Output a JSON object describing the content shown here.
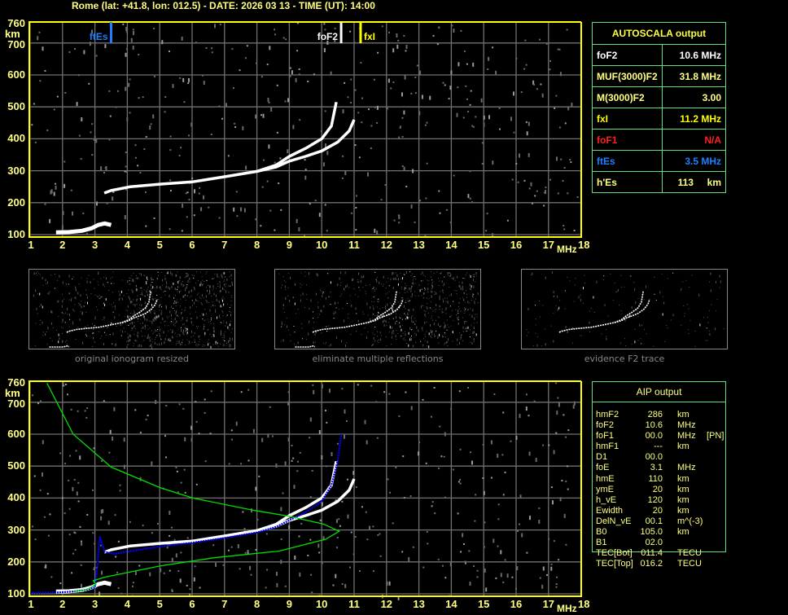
{
  "header": {
    "title": "Rome (lat: +41.8, lon: 012.5) - DATE: 2026 03 13 - TIME (UT): 14:00"
  },
  "autoscala": {
    "title": "AUTOSCALA output",
    "rows": [
      {
        "label": "foF2",
        "value": "10.6 MHz",
        "color": "#ffffff"
      },
      {
        "label": "MUF(3000)F2",
        "value": "31.8 MHz",
        "color": "#ffff80"
      },
      {
        "label": "M(3000)F2",
        "value": "3.00",
        "color": "#ffff80"
      },
      {
        "label": "fxI",
        "value": "11.2 MHz",
        "color": "#ffff00"
      },
      {
        "label": "foF1",
        "value": "N/A",
        "color": "#ff2020"
      },
      {
        "label": "ftEs",
        "value": "3.5 MHz",
        "color": "#1e7fff"
      },
      {
        "label": "h'Es",
        "value": "113     km",
        "color": "#ffff80"
      }
    ]
  },
  "aip": {
    "title": "AIP output",
    "rows": [
      [
        "hmF2",
        "286",
        "km",
        ""
      ],
      [
        "foF2",
        "10.6",
        "MHz",
        ""
      ],
      [
        "foF1",
        "00.0",
        "MHz",
        "[PN]"
      ],
      [
        "hmF1",
        "---",
        "km",
        ""
      ],
      [
        "D1",
        "00.0",
        "",
        ""
      ],
      [
        "foE",
        "3.1",
        "MHz",
        ""
      ],
      [
        "hmE",
        "110",
        "km",
        ""
      ],
      [
        "ymE",
        "20",
        "km",
        ""
      ],
      [
        "h_vE",
        "120",
        "km",
        ""
      ],
      [
        "Ewidth",
        "20",
        "km",
        ""
      ],
      [
        "DelN_vE",
        "00.1",
        "m^(-3)",
        ""
      ],
      [
        "B0",
        "105.0",
        "km",
        ""
      ],
      [
        "B1",
        "02.0",
        "",
        ""
      ],
      [
        "TEC[Bot]",
        "011.4",
        "TECU",
        ""
      ],
      [
        "TEC[Top]",
        "016.2",
        "TECU",
        ""
      ]
    ]
  },
  "thumbnails": [
    {
      "caption": "original ionogram resized"
    },
    {
      "caption": "eliminate multiple reflections"
    },
    {
      "caption": "evidence F2 trace"
    }
  ],
  "colors": {
    "axis": "#ffff00",
    "grid": "#707070",
    "trace": "#ffffff",
    "aip_fit": "#0000ff",
    "profile": "#00e000",
    "table_border": "#60e080"
  },
  "chart_data": [
    {
      "type": "scatter",
      "xlabel": "MHz",
      "ylabel": "km",
      "xlim": [
        1,
        18
      ],
      "ylim": [
        100,
        760
      ],
      "grid": true,
      "x_ticks": [
        "1",
        "2",
        "3",
        "4",
        "5",
        "6",
        "7",
        "8",
        "9",
        "10",
        "11",
        "12",
        "13",
        "14",
        "15",
        "16",
        "17",
        "18"
      ],
      "y_ticks": [
        "100",
        "200",
        "300",
        "400",
        "500",
        "600",
        "700",
        "760"
      ],
      "markers": [
        {
          "label": "ftEs",
          "x": 3.5,
          "color": "#1e7fff"
        },
        {
          "label": "foF2",
          "x": 10.6,
          "color": "#ffffff"
        },
        {
          "label": "fxI",
          "x": 11.2,
          "color": "#ffff00"
        }
      ],
      "series": [
        {
          "x": [
            1.8,
            2.2,
            2.6,
            2.9,
            3.1,
            3.3,
            3.5
          ],
          "y": [
            107,
            108,
            112,
            120,
            130,
            135,
            130
          ],
          "color": "#ffffff"
        },
        {
          "x": [
            3.29,
            3.5,
            4.1,
            5,
            6,
            7,
            8,
            8.6,
            9,
            9.5,
            10,
            10.3,
            10.45
          ],
          "y": [
            230,
            238,
            250,
            258,
            265,
            281,
            298,
            318,
            345,
            370,
            400,
            440,
            515
          ],
          "color": "#ffffff"
        },
        {
          "x": [
            8,
            8.6,
            9,
            9.5,
            10,
            10.5,
            10.85,
            11.0
          ],
          "y": [
            298,
            312,
            330,
            345,
            362,
            390,
            425,
            460
          ],
          "color": "#ffffff"
        }
      ]
    },
    {
      "type": "scatter",
      "xlabel": "MHz",
      "ylabel": "km",
      "xlim": [
        1,
        18
      ],
      "ylim": [
        100,
        760
      ],
      "grid": true,
      "x_ticks": [
        "1",
        "2",
        "3",
        "4",
        "5",
        "6",
        "7",
        "8",
        "9",
        "10",
        "11",
        "12",
        "13",
        "14",
        "15",
        "16",
        "17",
        "18"
      ],
      "y_ticks": [
        "100",
        "200",
        "300",
        "400",
        "500",
        "600",
        "700",
        "760"
      ],
      "series": [
        {
          "x": [
            1.8,
            2.2,
            2.6,
            2.9,
            3.1,
            3.3,
            3.5
          ],
          "y": [
            107,
            108,
            112,
            120,
            130,
            135,
            130
          ],
          "color": "#ffffff"
        },
        {
          "x": [
            3.29,
            3.5,
            4.1,
            5,
            6,
            7,
            8,
            8.6,
            9,
            9.5,
            10,
            10.3,
            10.45
          ],
          "y": [
            230,
            238,
            250,
            258,
            265,
            281,
            298,
            318,
            345,
            370,
            400,
            440,
            515
          ],
          "color": "#ffffff"
        },
        {
          "x": [
            8,
            8.6,
            9,
            9.5,
            10,
            10.5,
            10.85,
            11.0
          ],
          "y": [
            298,
            312,
            330,
            345,
            362,
            390,
            425,
            460
          ],
          "color": "#ffffff"
        },
        {
          "x": [
            1.0,
            1.8,
            2.3,
            2.7,
            3.0,
            3.05,
            3.1,
            3.15,
            3.3,
            3.6,
            4,
            5,
            6,
            7,
            8,
            8.6,
            9,
            9.5,
            10,
            10.3,
            10.5,
            10.6
          ],
          "y": [
            102,
            104,
            107,
            112,
            120,
            160,
            220,
            280,
            232,
            225,
            232,
            248,
            260,
            275,
            292,
            310,
            330,
            355,
            390,
            440,
            520,
            600
          ],
          "color": "#0000ff"
        },
        {
          "x": [
            2.33,
            2.75,
            2.87,
            3.03,
            2.95,
            3.34,
            5.0,
            6.68,
            8.69,
            10.12,
            10.54,
            10.04,
            8.94,
            7.93,
            6.02,
            5.0,
            3.5,
            2.33,
            1.52
          ],
          "y": [
            107,
            113,
            120,
            130,
            141,
            153,
            187,
            213,
            234,
            271,
            296,
            319,
            344,
            361,
            400,
            433,
            497,
            600,
            760
          ],
          "color": "#00e000"
        }
      ]
    }
  ]
}
